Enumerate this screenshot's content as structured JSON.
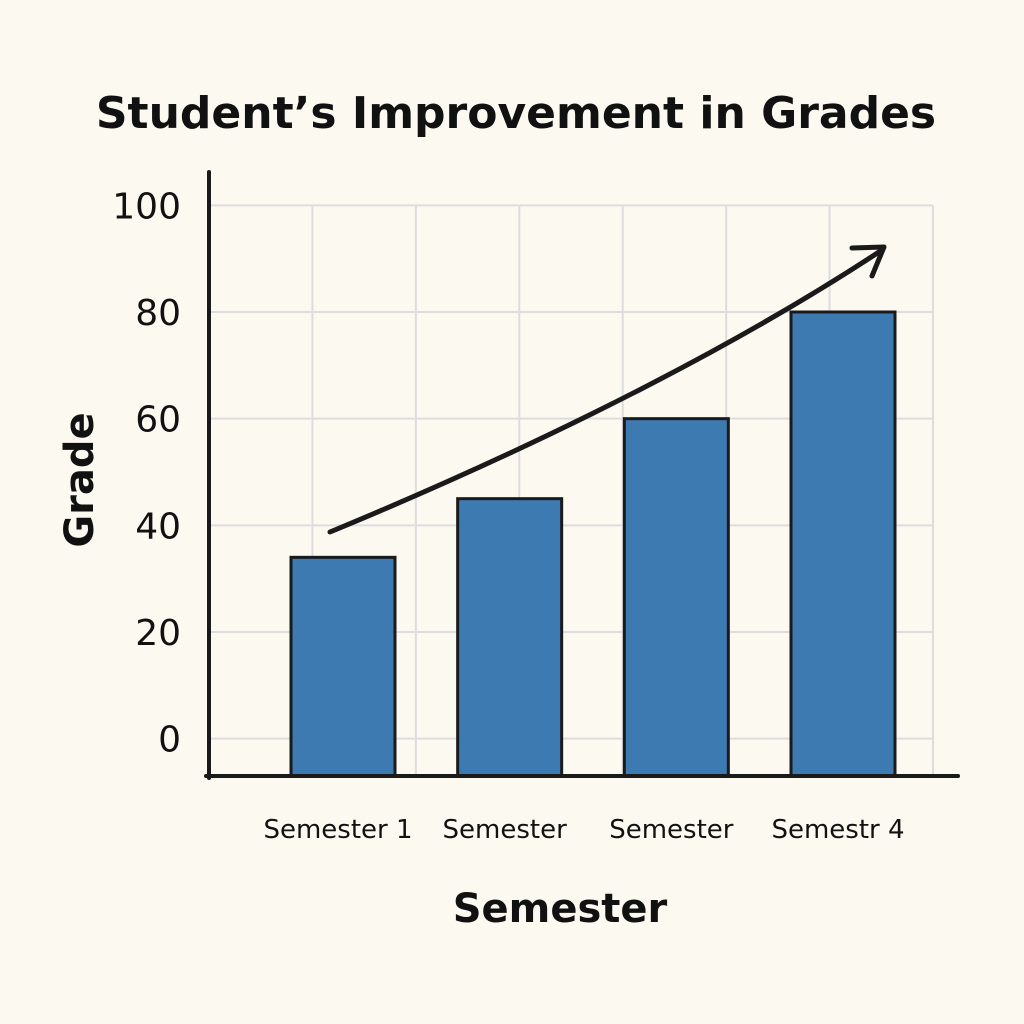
{
  "chart_data": {
    "type": "bar",
    "title": "Student’s Improvement in Grades",
    "xlabel": "Semester",
    "ylabel": "Grade",
    "categories": [
      "Semester 1",
      "Semester",
      "Semester",
      "Semestr 4"
    ],
    "values": [
      34,
      45,
      60,
      80
    ],
    "yticks": [
      "0",
      "20",
      "40",
      "60",
      "80",
      "100"
    ],
    "ylim": [
      -7,
      107
    ],
    "grid": true,
    "trend_arrow": true,
    "bar_color": "#3e7ab2",
    "bar_outline": "#1a1a1a",
    "grid_color": "#dddddd",
    "background": "#fcf9f1"
  }
}
